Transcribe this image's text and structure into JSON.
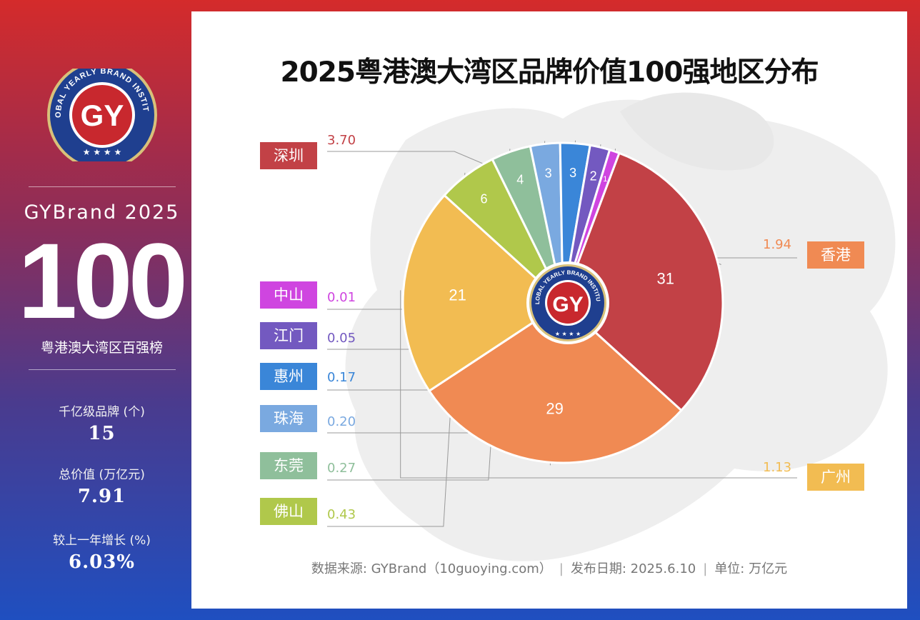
{
  "sidebar": {
    "logo": {
      "ring_text": "GLOBAL YEARLY BRAND INSTITUTE",
      "mark": "GY",
      "stars": "★ ★ ★ ★"
    },
    "brand_line": "GYBrand 2025",
    "big_number": "100",
    "subtitle": "粤港澳大湾区百强榜",
    "stats": [
      {
        "label": "千亿级品牌 (个)",
        "value": "15"
      },
      {
        "label": "总价值 (万亿元)",
        "value": "7.91"
      },
      {
        "label": "较上一年增长 (%)",
        "value": "6.03%"
      }
    ]
  },
  "footer": {
    "source": "数据来源: GYBrand（10guoying.com）",
    "date": "发布日期: 2025.6.10",
    "unit": "单位: 万亿元"
  },
  "chart_data": {
    "type": "pie",
    "title": "2025粤港澳大湾区品牌价值100强地区分布",
    "slices": [
      {
        "name": "深圳",
        "count": 31,
        "value_label": "3.70",
        "color": "#c24146"
      },
      {
        "name": "香港",
        "count": 29,
        "value_label": "1.94",
        "color": "#f08a53"
      },
      {
        "name": "广州",
        "count": 21,
        "value_label": "1.13",
        "color": "#f2bc52"
      },
      {
        "name": "佛山",
        "count": 6,
        "value_label": "0.43",
        "color": "#b0c84b"
      },
      {
        "name": "东莞",
        "count": 4,
        "value_label": "0.27",
        "color": "#8fbf9b"
      },
      {
        "name": "珠海",
        "count": 3,
        "value_label": "0.20",
        "color": "#7aa9e0"
      },
      {
        "name": "惠州",
        "count": 3,
        "value_label": "0.17",
        "color": "#3a86d8"
      },
      {
        "name": "江门",
        "count": 2,
        "value_label": "0.05",
        "color": "#7359c0"
      },
      {
        "name": "中山",
        "count": 1,
        "value_label": "0.01",
        "color": "#cf45e0"
      }
    ],
    "start_angle_deg": -90,
    "center_logo": {
      "ring_text": "GLOBAL YEARLY BRAND INSTITUTE",
      "mark": "GY"
    }
  }
}
